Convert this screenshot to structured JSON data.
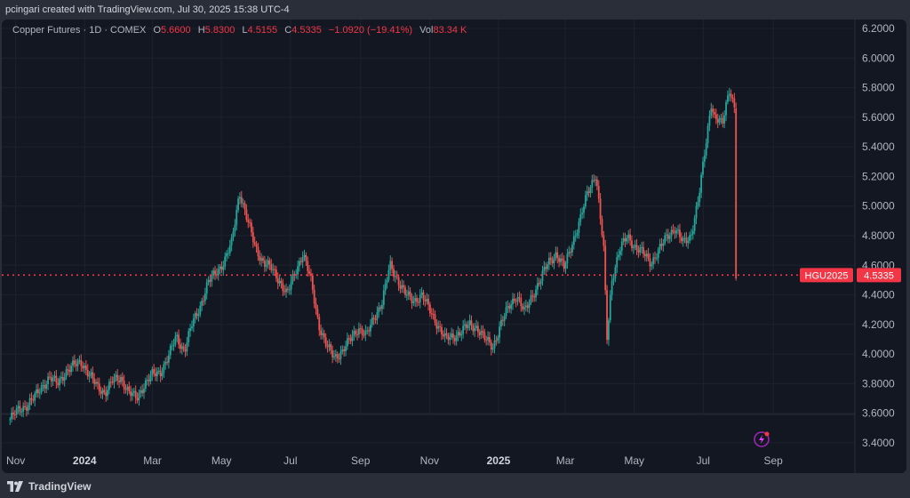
{
  "header": {
    "caption": "pcingari created with TradingView.com, Jul 30, 2025 15:38 UTC-4"
  },
  "legend": {
    "symbol": "Copper Futures · 1D · COMEX",
    "open_label": "O",
    "open": "5.6600",
    "high_label": "H",
    "high": "5.8300",
    "low_label": "L",
    "low": "4.5155",
    "close_label": "C",
    "close": "4.5335",
    "change": "−1.0920 (−19.41%)",
    "vol_label": "Vol",
    "vol": "83.34 K"
  },
  "price_tag": {
    "ticker": "HGU2025",
    "price": "4.5335"
  },
  "footer": {
    "brand": "TradingView"
  },
  "colors": {
    "up": "#26a69a",
    "down": "#ef5350",
    "background": "#131722",
    "grid": "#1e222d",
    "tag": "#f23645"
  },
  "chart_data": {
    "type": "line",
    "title": "Copper Futures · 1D · COMEX",
    "x_tick_labels": [
      "Nov",
      "2024",
      "Mar",
      "May",
      "Jul",
      "Sep",
      "Nov",
      "2025",
      "Mar",
      "May",
      "Jul",
      "Sep"
    ],
    "y_tick_labels": [
      "3.4000",
      "3.6000",
      "3.8000",
      "4.0000",
      "4.2000",
      "4.4000",
      "4.6000",
      "4.8000",
      "5.0000",
      "5.2000",
      "5.4000",
      "5.6000",
      "5.8000",
      "6.0000",
      "6.2000"
    ],
    "ylim": [
      3.4,
      6.2
    ],
    "y_scale": "linear",
    "last_price": 4.5335,
    "grid": true,
    "series": [
      {
        "x": [
          "2023-10-27",
          "2023-11-03",
          "2023-11-10",
          "2023-11-17",
          "2023-11-24",
          "2023-12-01",
          "2023-12-08",
          "2023-12-15",
          "2023-12-22",
          "2023-12-29",
          "2024-01-05",
          "2024-01-12",
          "2024-01-19",
          "2024-01-26",
          "2024-02-02",
          "2024-02-09",
          "2024-02-16",
          "2024-02-23",
          "2024-03-01",
          "2024-03-08",
          "2024-03-15",
          "2024-03-22",
          "2024-03-29",
          "2024-04-05",
          "2024-04-12",
          "2024-04-19",
          "2024-04-26",
          "2024-05-03",
          "2024-05-10",
          "2024-05-17",
          "2024-05-24",
          "2024-05-31",
          "2024-06-07",
          "2024-06-14",
          "2024-06-21",
          "2024-06-28",
          "2024-07-05",
          "2024-07-12",
          "2024-07-19",
          "2024-07-26",
          "2024-08-02",
          "2024-08-09",
          "2024-08-16",
          "2024-08-23",
          "2024-08-30",
          "2024-09-06",
          "2024-09-13",
          "2024-09-20",
          "2024-09-27",
          "2024-10-04",
          "2024-10-11",
          "2024-10-18",
          "2024-10-25",
          "2024-11-01",
          "2024-11-08",
          "2024-11-15",
          "2024-11-22",
          "2024-11-29",
          "2024-12-06",
          "2024-12-13",
          "2024-12-20",
          "2024-12-27",
          "2025-01-03",
          "2025-01-10",
          "2025-01-17",
          "2025-01-24",
          "2025-01-31",
          "2025-02-07",
          "2025-02-14",
          "2025-02-21",
          "2025-02-28",
          "2025-03-07",
          "2025-03-14",
          "2025-03-21",
          "2025-03-28",
          "2025-04-04",
          "2025-04-07",
          "2025-04-11",
          "2025-04-18",
          "2025-04-25",
          "2025-05-02",
          "2025-05-09",
          "2025-05-16",
          "2025-05-23",
          "2025-05-30",
          "2025-06-06",
          "2025-06-13",
          "2025-06-20",
          "2025-06-27",
          "2025-07-03",
          "2025-07-08",
          "2025-07-11",
          "2025-07-18",
          "2025-07-24",
          "2025-07-29",
          "2025-07-30"
        ],
        "y": [
          3.56,
          3.62,
          3.65,
          3.7,
          3.78,
          3.84,
          3.8,
          3.88,
          3.92,
          3.95,
          3.86,
          3.78,
          3.74,
          3.82,
          3.84,
          3.74,
          3.7,
          3.8,
          3.86,
          3.88,
          3.98,
          4.12,
          4.02,
          4.2,
          4.32,
          4.48,
          4.55,
          4.62,
          4.75,
          5.1,
          4.9,
          4.72,
          4.62,
          4.58,
          4.5,
          4.4,
          4.55,
          4.68,
          4.5,
          4.2,
          4.05,
          3.98,
          4.02,
          4.1,
          4.18,
          4.12,
          4.25,
          4.35,
          4.6,
          4.5,
          4.4,
          4.36,
          4.4,
          4.3,
          4.2,
          4.1,
          4.12,
          4.15,
          4.2,
          4.18,
          4.1,
          4.05,
          4.2,
          4.32,
          4.4,
          4.28,
          4.4,
          4.5,
          4.62,
          4.68,
          4.58,
          4.75,
          4.9,
          5.1,
          5.22,
          4.7,
          4.1,
          4.5,
          4.7,
          4.8,
          4.72,
          4.68,
          4.62,
          4.7,
          4.8,
          4.85,
          4.75,
          4.8,
          5.05,
          5.4,
          5.7,
          5.6,
          5.55,
          5.8,
          5.66,
          4.5335
        ]
      }
    ]
  }
}
